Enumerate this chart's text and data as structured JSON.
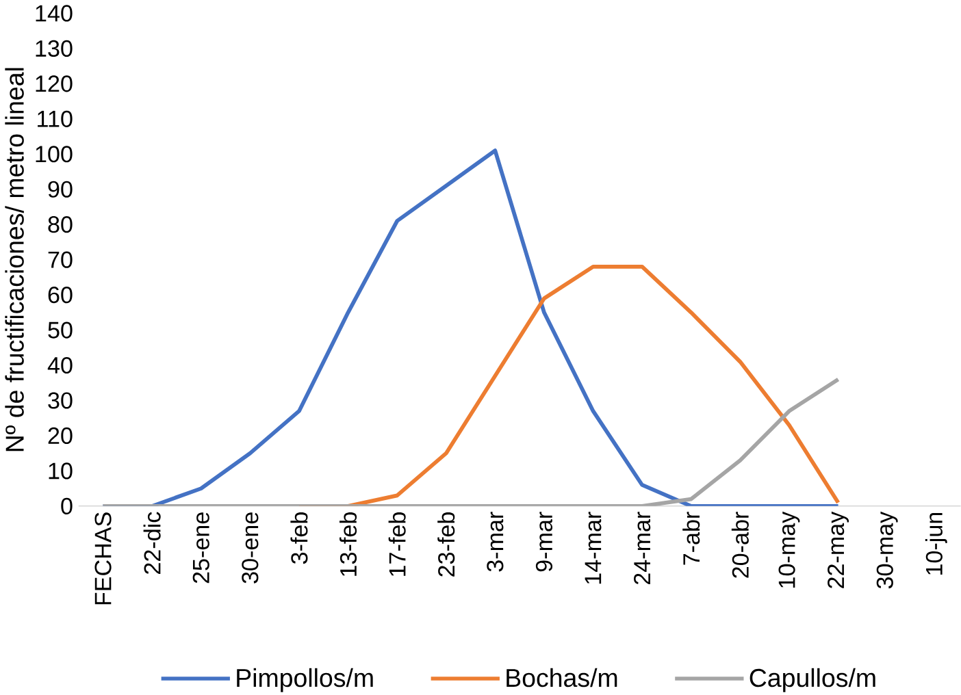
{
  "chart_data": {
    "type": "line",
    "ylabel": "Nº de fructificaciones/ metro lineal",
    "categories": [
      "FECHAS",
      "22-dic",
      "25-ene",
      "30-ene",
      "3-feb",
      "13-feb",
      "17-feb",
      "23-feb",
      "3-mar",
      "9-mar",
      "14-mar",
      "24-mar",
      "7-abr",
      "20-abr",
      "10-may",
      "22-may",
      "30-may",
      "10-jun"
    ],
    "series": [
      {
        "name": "Pimpollos/m",
        "color": "#4472c4",
        "values": [
          0,
          0,
          5,
          15,
          27,
          55,
          81,
          91,
          101,
          55,
          27,
          6,
          0,
          0,
          0,
          0,
          null,
          null
        ]
      },
      {
        "name": "Bochas/m",
        "color": "#ed7d31",
        "values": [
          null,
          null,
          null,
          null,
          0,
          0,
          3,
          15,
          37,
          59,
          68,
          68,
          55,
          41,
          23,
          1,
          null,
          null
        ]
      },
      {
        "name": "Capullos/m",
        "color": "#a5a5a5",
        "values": [
          0,
          0,
          0,
          0,
          0,
          0,
          0,
          0,
          0,
          0,
          0,
          0,
          2,
          13,
          27,
          36,
          null,
          null
        ]
      }
    ],
    "ylim": [
      0,
      140
    ],
    "yticks": [
      0,
      10,
      20,
      30,
      40,
      50,
      60,
      70,
      80,
      90,
      100,
      110,
      120,
      130,
      140
    ],
    "grid": false,
    "legend": "bottom",
    "marker": "none",
    "line_style": "solid"
  }
}
